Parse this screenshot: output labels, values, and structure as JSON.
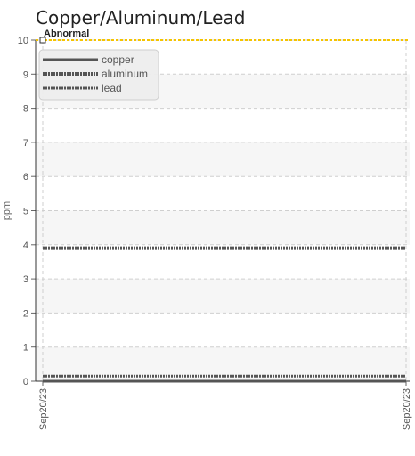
{
  "chart_data": {
    "type": "line",
    "title": "Copper/Aluminum/Lead",
    "ylabel": "ppm",
    "xlabel": "",
    "ylim": [
      0,
      10
    ],
    "yticks": [
      "0",
      "1",
      "2",
      "3",
      "4",
      "5",
      "6",
      "7",
      "8",
      "9",
      "10"
    ],
    "xticks": [
      "Sep20/23",
      "Sep20/23"
    ],
    "x": [
      "Sep20/23",
      "Sep20/23"
    ],
    "series": [
      {
        "name": "copper",
        "values": [
          0,
          0
        ],
        "color": "#555555",
        "style": "solid"
      },
      {
        "name": "aluminum",
        "values": [
          3.9,
          3.9
        ],
        "color": "#555555",
        "style": "dotted-thick"
      },
      {
        "name": "lead",
        "values": [
          0.15,
          0.15
        ],
        "color": "#555555",
        "style": "dotted"
      }
    ],
    "threshold": {
      "label": "Abnormal",
      "value": 10,
      "color": "#f5c400"
    },
    "grid": true,
    "legend": "top-left"
  }
}
